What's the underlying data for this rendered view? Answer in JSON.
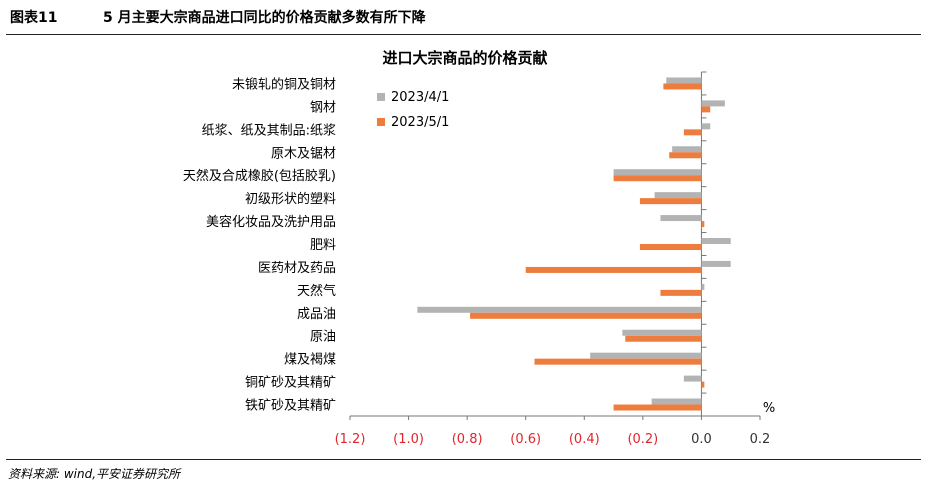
{
  "header": {
    "figure_label": "图表11",
    "figure_title": "5 月主要大宗商品进口同比的价格贡献多数有所下降"
  },
  "footer": {
    "source": "资料来源: wind,平安证券研究所"
  },
  "chart_data": {
    "type": "bar",
    "orientation": "horizontal",
    "title": "进口大宗商品的价格贡献",
    "unit_label": "%",
    "categories": [
      "未锻轧的铜及铜材",
      "钢材",
      "纸浆、纸及其制品:纸浆",
      "原木及锯材",
      "天然及合成橡胶(包括胶乳)",
      "初级形状的塑料",
      "美容化妆品及洗护用品",
      "肥料",
      "医药材及药品",
      "天然气",
      "成品油",
      "原油",
      "煤及褐煤",
      "铜矿砂及其精矿",
      "铁矿砂及其精矿"
    ],
    "series": [
      {
        "name": "2023/4/1",
        "color": "#b3b3b3",
        "values": [
          -0.12,
          0.08,
          0.03,
          -0.1,
          -0.3,
          -0.16,
          -0.14,
          0.1,
          0.1,
          0.01,
          -0.97,
          -0.27,
          -0.38,
          -0.06,
          -0.17
        ]
      },
      {
        "name": "2023/5/1",
        "color": "#ee7d3d",
        "values": [
          -0.13,
          0.03,
          -0.06,
          -0.11,
          -0.3,
          -0.21,
          0.01,
          -0.21,
          -0.6,
          -0.14,
          -0.79,
          -0.26,
          -0.57,
          0.01,
          -0.3
        ]
      }
    ],
    "xlim": [
      -1.2,
      0.2
    ],
    "xticks": [
      -1.2,
      -1.0,
      -0.8,
      -0.6,
      -0.4,
      -0.2,
      0.0,
      0.2
    ],
    "xtick_labels": [
      "(1.2)",
      "(1.0)",
      "(0.8)",
      "(0.6)",
      "(0.4)",
      "(0.2)",
      "0.0",
      "0.2"
    ],
    "negative_tick_color": "#e0262b",
    "positive_tick_color": "#333333",
    "legend_position": "top-right",
    "grid": false
  }
}
